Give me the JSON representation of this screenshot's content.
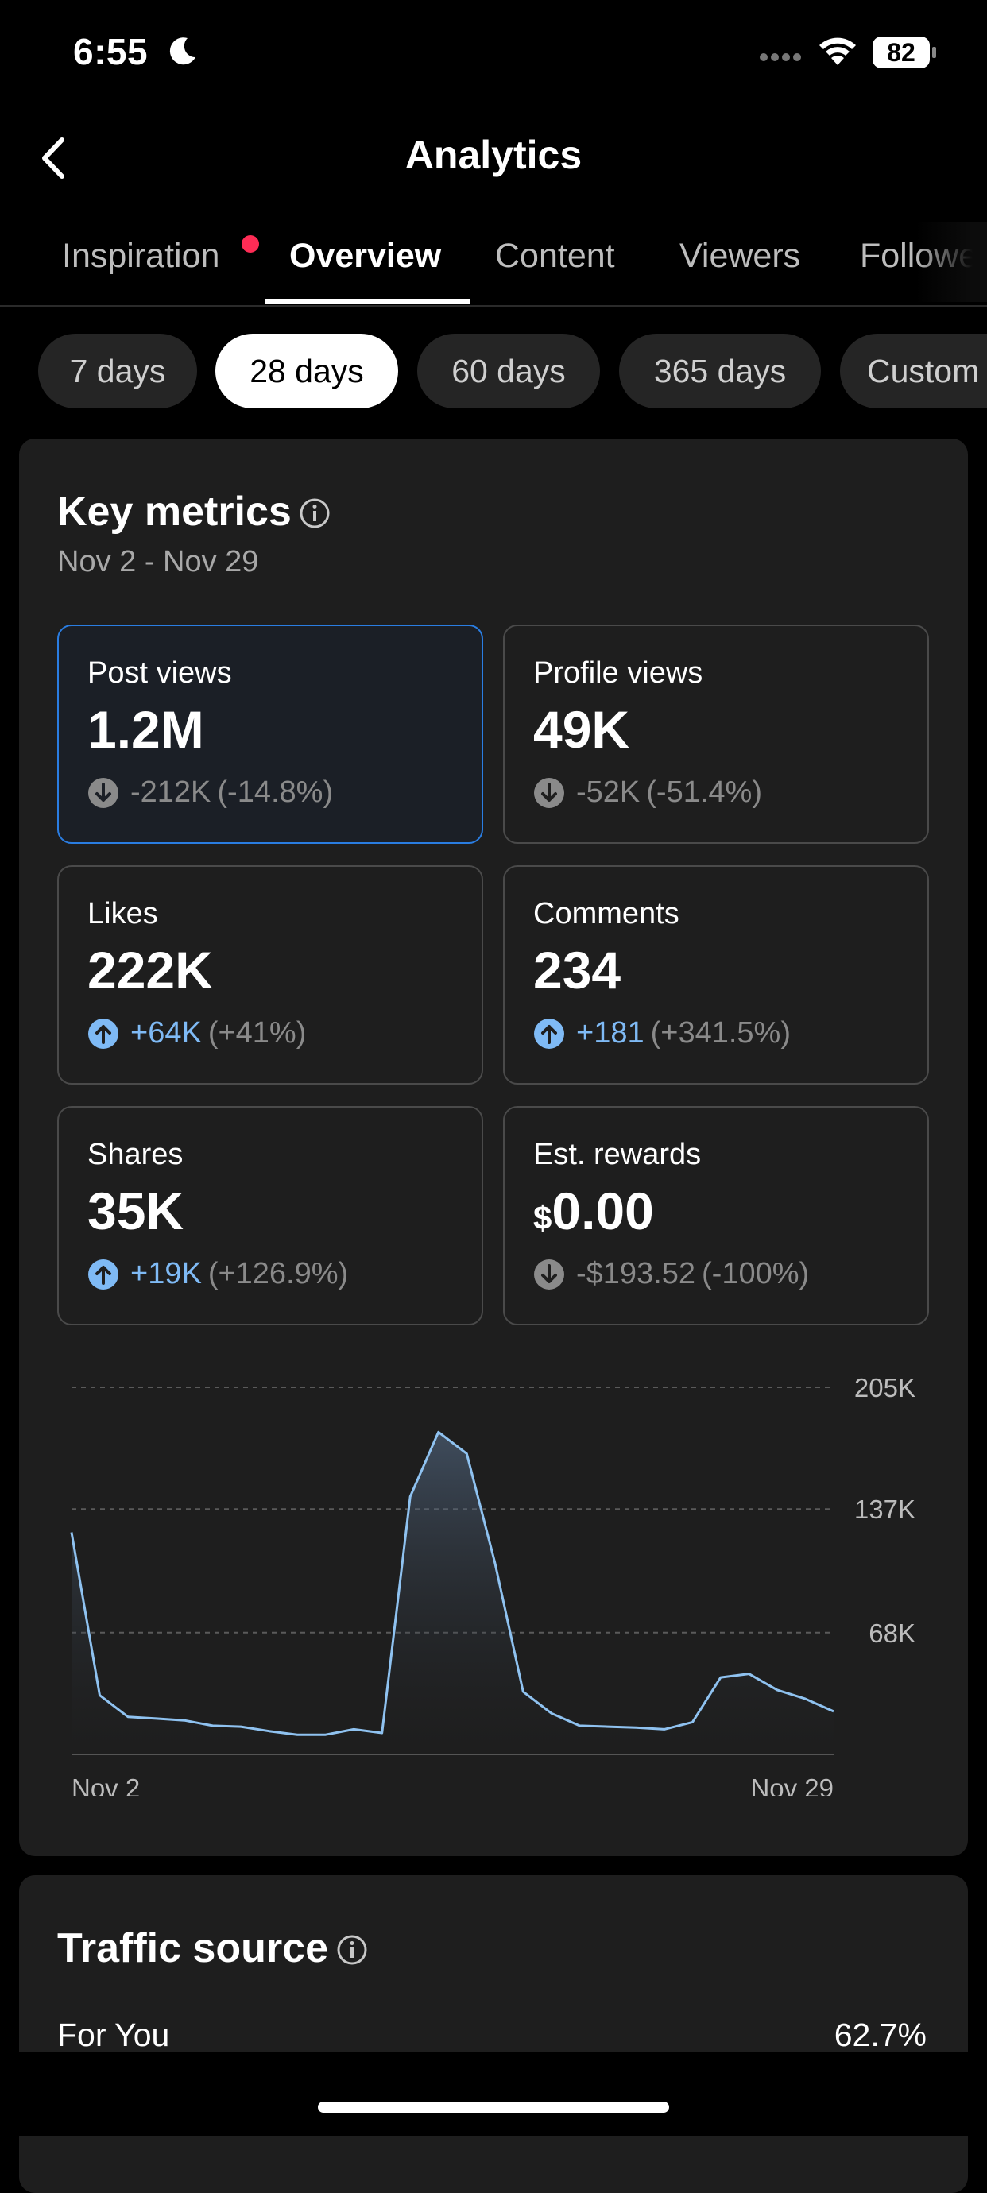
{
  "status_bar": {
    "time": "6:55",
    "battery": "82",
    "icons": [
      "moon-icon",
      "signal-icon",
      "wifi-icon",
      "battery-icon"
    ]
  },
  "header": {
    "title": "Analytics",
    "back_icon": "chevron-left-icon"
  },
  "tabs": [
    {
      "label": "Inspiration",
      "active": false,
      "dot": true
    },
    {
      "label": "Overview",
      "active": true,
      "dot": false
    },
    {
      "label": "Content",
      "active": false,
      "dot": false
    },
    {
      "label": "Viewers",
      "active": false,
      "dot": false
    },
    {
      "label": "Followers",
      "active": false,
      "dot": false
    }
  ],
  "ranges": [
    {
      "label": "7 days",
      "active": false
    },
    {
      "label": "28 days",
      "active": true
    },
    {
      "label": "60 days",
      "active": false
    },
    {
      "label": "365 days",
      "active": false
    },
    {
      "label": "Custom",
      "active": false
    }
  ],
  "key_metrics": {
    "title": "Key metrics",
    "date_range": "Nov 2 - Nov 29",
    "items": [
      {
        "label": "Post views",
        "value": "1.2M",
        "change": "-212K",
        "pct": "(-14.8%)",
        "direction": "down",
        "selected": true
      },
      {
        "label": "Profile views",
        "value": "49K",
        "change": "-52K",
        "pct": "(-51.4%)",
        "direction": "down",
        "selected": false
      },
      {
        "label": "Likes",
        "value": "222K",
        "change": "+64K",
        "pct": "(+41%)",
        "direction": "up",
        "selected": false
      },
      {
        "label": "Comments",
        "value": "234",
        "change": "+181",
        "pct": "(+341.5%)",
        "direction": "up",
        "selected": false
      },
      {
        "label": "Shares",
        "value": "35K",
        "change": "+19K",
        "pct": "(+126.9%)",
        "direction": "up",
        "selected": false
      },
      {
        "label": "Est. rewards",
        "currency": "$",
        "value": "0.00",
        "change": "-$193.52",
        "pct": "(-100%)",
        "direction": "down",
        "selected": false
      }
    ]
  },
  "chart_data": {
    "type": "area",
    "title": "",
    "xlabel": "",
    "ylabel": "",
    "x_tick_labels": [
      "Nov 2",
      "Nov 29"
    ],
    "y_tick_labels": [
      "68K",
      "137K",
      "205K"
    ],
    "y_ticks": [
      68000,
      137000,
      205000
    ],
    "ylim": [
      0,
      205000
    ],
    "grid": true,
    "x": [
      "Nov 2",
      "Nov 3",
      "Nov 4",
      "Nov 5",
      "Nov 6",
      "Nov 7",
      "Nov 8",
      "Nov 9",
      "Nov 10",
      "Nov 11",
      "Nov 12",
      "Nov 13",
      "Nov 14",
      "Nov 15",
      "Nov 16",
      "Nov 17",
      "Nov 18",
      "Nov 19",
      "Nov 20",
      "Nov 21",
      "Nov 22",
      "Nov 23",
      "Nov 24",
      "Nov 25",
      "Nov 26",
      "Nov 27",
      "Nov 28",
      "Nov 29"
    ],
    "series": [
      {
        "values": [
          124000,
          33000,
          21000,
          20000,
          19000,
          16000,
          15500,
          13000,
          11000,
          11000,
          14000,
          12000,
          144000,
          180000,
          168000,
          107000,
          35000,
          23000,
          16000,
          15500,
          15000,
          14000,
          18000,
          43000,
          45000,
          36000,
          31000,
          24000
        ],
        "color": "#8fc2f0"
      }
    ]
  },
  "traffic_source": {
    "title": "Traffic source",
    "rows": [
      {
        "label": "For You",
        "value": "62.7%"
      }
    ]
  }
}
